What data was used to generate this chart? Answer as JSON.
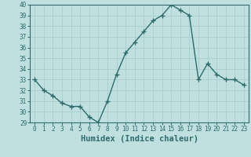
{
  "x": [
    0,
    1,
    2,
    3,
    4,
    5,
    6,
    7,
    8,
    9,
    10,
    11,
    12,
    13,
    14,
    15,
    16,
    17,
    18,
    19,
    20,
    21,
    22,
    23
  ],
  "y": [
    33,
    32,
    31.5,
    30.8,
    30.5,
    30.5,
    29.5,
    29,
    31,
    33.5,
    35.5,
    36.5,
    37.5,
    38.5,
    39,
    40,
    39.5,
    39,
    33,
    34.5,
    33.5,
    33,
    33,
    32.5
  ],
  "line_color": "#2e6b6b",
  "marker": "+",
  "marker_size": 4,
  "marker_linewidth": 1.0,
  "bg_color": "#c0e0e0",
  "grid_color": "#a8cece",
  "xlabel": "Humidex (Indice chaleur)",
  "ylim": [
    29,
    40
  ],
  "xlim": [
    -0.5,
    23.5
  ],
  "yticks": [
    29,
    30,
    31,
    32,
    33,
    34,
    35,
    36,
    37,
    38,
    39,
    40
  ],
  "xticks": [
    0,
    1,
    2,
    3,
    4,
    5,
    6,
    7,
    8,
    9,
    10,
    11,
    12,
    13,
    14,
    15,
    16,
    17,
    18,
    19,
    20,
    21,
    22,
    23
  ],
  "tick_label_fontsize": 5.5,
  "xlabel_fontsize": 7.5,
  "tick_color": "#2e6b6b",
  "spine_color": "#2e6b6b",
  "linewidth": 1.0
}
